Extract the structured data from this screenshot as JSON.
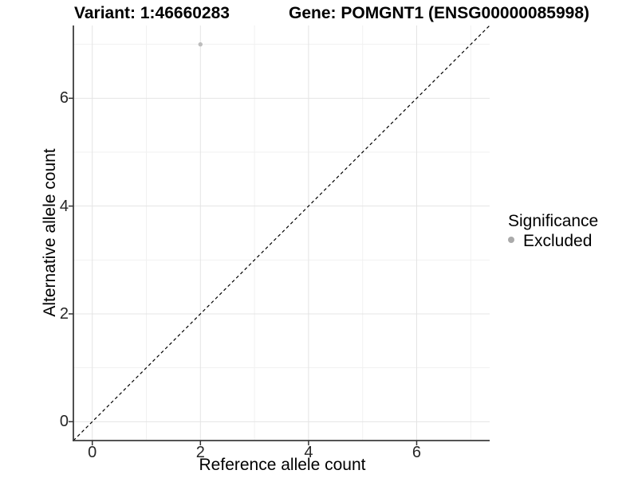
{
  "header": {
    "variant_title": "Variant: 1:46660283",
    "gene_title": "Gene: POMGNT1 (ENSG00000085998)"
  },
  "legend": {
    "title": "Significance",
    "items": [
      {
        "label": "Excluded",
        "color": "#aaaaaa"
      }
    ]
  },
  "chart_data": {
    "type": "scatter",
    "title_left": "Variant: 1:46660283",
    "title_right": "Gene: POMGNT1 (ENSG00000085998)",
    "xlabel": "Reference allele count",
    "ylabel": "Alternative allele count",
    "xlim": [
      -0.35,
      7.35
    ],
    "ylim": [
      -0.35,
      7.35
    ],
    "x_ticks": [
      0,
      2,
      4,
      6
    ],
    "y_ticks": [
      0,
      2,
      4,
      6
    ],
    "x_minor_ticks": [
      1,
      3,
      5,
      7
    ],
    "y_minor_ticks": [
      1,
      3,
      5,
      7
    ],
    "grid": "on",
    "legend_position": "right",
    "legend_title": "Significance",
    "series": [
      {
        "name": "Excluded",
        "color": "#bdbdbd",
        "point_radius": 2.7,
        "points": [
          {
            "x": 2,
            "y": 7
          }
        ]
      }
    ],
    "reference_line": {
      "type": "identity y=x",
      "style": "dashed",
      "color": "#000000"
    }
  },
  "colors": {
    "background": "#ffffff",
    "grid_major": "#e4e4e4",
    "grid_minor": "#f1f1f1",
    "axis_line": "#3c3c3c",
    "tick_mark": "#333333",
    "tick_text": "#262626",
    "point": "#bdbdbd",
    "legend_dot": "#aaaaaa"
  }
}
